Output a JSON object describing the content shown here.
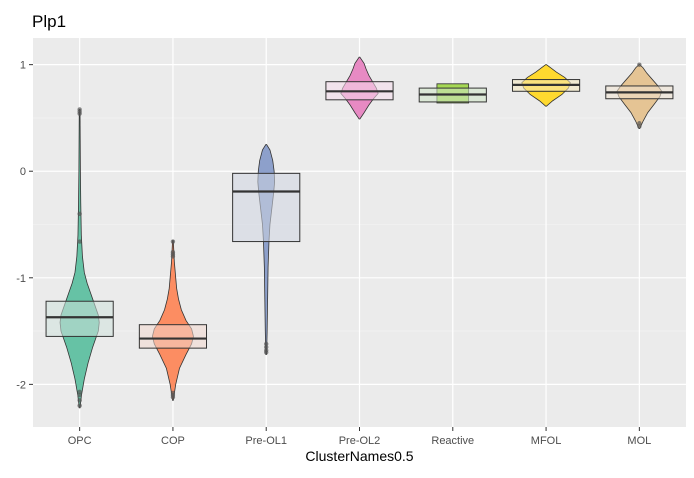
{
  "chart_data": {
    "type": "violin",
    "title": "Plp1",
    "xlabel": "ClusterNames0.5",
    "ylabel": "",
    "ylim": [
      -2.4,
      1.25
    ],
    "yticks": [
      -2,
      -1,
      0,
      1
    ],
    "grid": true,
    "legend": "none",
    "categories": [
      "OPC",
      "COP",
      "Pre-OL1",
      "Pre-OL2",
      "Reactive",
      "MFOL",
      "MOL"
    ],
    "colors": [
      "#66c2a5",
      "#fc8d62",
      "#8da0cb",
      "#e78ac3",
      "#a6d854",
      "#ffd92f",
      "#e5c494"
    ],
    "box_colors": [
      "#d0e2dc",
      "#f2d8cf",
      "#d0d5e2",
      "#f6dcec",
      "#cde6c4",
      "#f5e9bd",
      "#f0e4d2"
    ],
    "boxes": [
      {
        "q1": -1.55,
        "median": -1.37,
        "q3": -1.22
      },
      {
        "q1": -1.66,
        "median": -1.57,
        "q3": -1.44
      },
      {
        "q1": -0.66,
        "median": -0.19,
        "q3": -0.02
      },
      {
        "q1": 0.67,
        "median": 0.75,
        "q3": 0.84
      },
      {
        "q1": 0.65,
        "median": 0.72,
        "q3": 0.78
      },
      {
        "q1": 0.75,
        "median": 0.81,
        "q3": 0.86
      },
      {
        "q1": 0.68,
        "median": 0.74,
        "q3": 0.8
      }
    ],
    "violins": [
      {
        "range": [
          -2.22,
          0.58
        ],
        "profile": [
          [
            -2.22,
            0.004
          ],
          [
            -2.1,
            0.02
          ],
          [
            -1.95,
            0.05
          ],
          [
            -1.8,
            0.09
          ],
          [
            -1.65,
            0.14
          ],
          [
            -1.5,
            0.2
          ],
          [
            -1.42,
            0.21
          ],
          [
            -1.35,
            0.2
          ],
          [
            -1.25,
            0.16
          ],
          [
            -1.15,
            0.12
          ],
          [
            -1.05,
            0.08
          ],
          [
            -0.95,
            0.05
          ],
          [
            -0.8,
            0.03
          ],
          [
            -0.6,
            0.018
          ],
          [
            -0.3,
            0.012
          ],
          [
            0.0,
            0.008
          ],
          [
            0.3,
            0.006
          ],
          [
            0.58,
            0.004
          ]
        ]
      },
      {
        "range": [
          -2.15,
          -0.65
        ],
        "profile": [
          [
            -2.15,
            0.004
          ],
          [
            -2.0,
            0.03
          ],
          [
            -1.85,
            0.07
          ],
          [
            -1.72,
            0.14
          ],
          [
            -1.62,
            0.2
          ],
          [
            -1.55,
            0.22
          ],
          [
            -1.48,
            0.2
          ],
          [
            -1.4,
            0.14
          ],
          [
            -1.3,
            0.09
          ],
          [
            -1.2,
            0.06
          ],
          [
            -1.1,
            0.04
          ],
          [
            -1.0,
            0.03
          ],
          [
            -0.85,
            0.015
          ],
          [
            -0.65,
            0.004
          ]
        ]
      },
      {
        "range": [
          -1.72,
          0.25
        ],
        "profile": [
          [
            -1.72,
            0.004
          ],
          [
            -1.5,
            0.01
          ],
          [
            -1.2,
            0.015
          ],
          [
            -0.9,
            0.02
          ],
          [
            -0.65,
            0.03
          ],
          [
            -0.5,
            0.04
          ],
          [
            -0.35,
            0.06
          ],
          [
            -0.2,
            0.08
          ],
          [
            -0.1,
            0.09
          ],
          [
            0.0,
            0.085
          ],
          [
            0.1,
            0.07
          ],
          [
            0.2,
            0.04
          ],
          [
            0.25,
            0.004
          ]
        ]
      },
      {
        "range": [
          0.49,
          1.07
        ],
        "profile": [
          [
            0.49,
            0.004
          ],
          [
            0.55,
            0.05
          ],
          [
            0.62,
            0.1
          ],
          [
            0.68,
            0.15
          ],
          [
            0.73,
            0.2
          ],
          [
            0.78,
            0.18
          ],
          [
            0.84,
            0.14
          ],
          [
            0.9,
            0.1
          ],
          [
            0.96,
            0.07
          ],
          [
            1.01,
            0.05
          ],
          [
            1.07,
            0.004
          ]
        ]
      },
      {
        "range": [
          0.64,
          0.82
        ],
        "profile": [
          [
            0.64,
            0.17
          ],
          [
            0.82,
            0.17
          ]
        ]
      },
      {
        "range": [
          0.61,
          1.0
        ],
        "profile": [
          [
            0.61,
            0.004
          ],
          [
            0.66,
            0.07
          ],
          [
            0.72,
            0.17
          ],
          [
            0.78,
            0.24
          ],
          [
            0.83,
            0.26
          ],
          [
            0.88,
            0.2
          ],
          [
            0.93,
            0.11
          ],
          [
            0.97,
            0.05
          ],
          [
            1.0,
            0.004
          ]
        ]
      },
      {
        "range": [
          0.4,
          1.0
        ],
        "profile": [
          [
            0.4,
            0.004
          ],
          [
            0.47,
            0.04
          ],
          [
            0.55,
            0.09
          ],
          [
            0.63,
            0.16
          ],
          [
            0.7,
            0.22
          ],
          [
            0.75,
            0.24
          ],
          [
            0.8,
            0.2
          ],
          [
            0.86,
            0.14
          ],
          [
            0.92,
            0.08
          ],
          [
            0.97,
            0.04
          ],
          [
            1.0,
            0.004
          ]
        ]
      }
    ],
    "points": [
      {
        "category": "OPC",
        "values": [
          0.58,
          0.56,
          0.54,
          -0.4,
          -0.66,
          -2.07,
          -2.1,
          -2.15,
          -2.2
        ]
      },
      {
        "category": "COP",
        "values": [
          -0.66,
          -0.76,
          -0.78,
          -0.8,
          -2.08,
          -2.1,
          -2.12
        ]
      },
      {
        "category": "Pre-OL1",
        "values": [
          -1.62,
          -1.65,
          -1.68,
          -1.7
        ]
      },
      {
        "category": "MOL",
        "values": [
          1.0,
          0.45,
          0.42
        ]
      }
    ]
  }
}
